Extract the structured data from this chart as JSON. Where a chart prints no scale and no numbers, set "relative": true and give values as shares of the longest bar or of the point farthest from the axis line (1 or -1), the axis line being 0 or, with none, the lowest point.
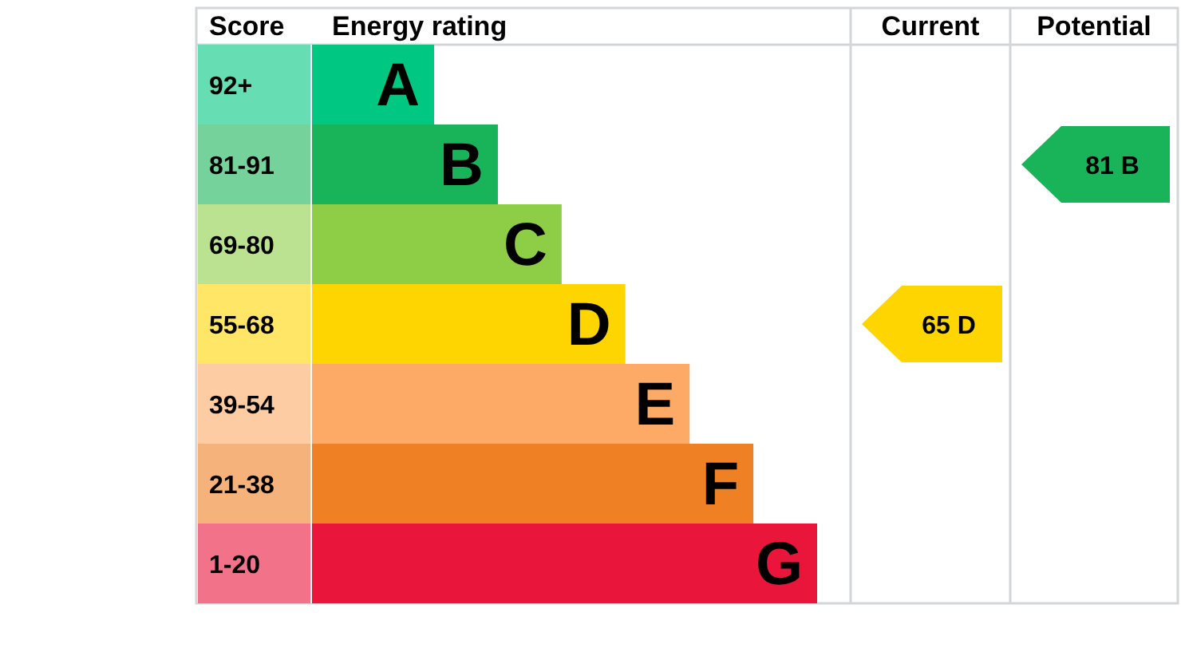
{
  "chart_data": {
    "type": "bar",
    "orientation": "horizontal",
    "relative": true,
    "ylabel": "Score",
    "xlabel": "Energy rating",
    "categories": [
      "92+",
      "81-91",
      "69-80",
      "55-68",
      "39-54",
      "21-38",
      "1-20"
    ],
    "values": [
      0.243,
      0.369,
      0.495,
      0.621,
      0.748,
      0.874,
      1
    ],
    "colors": [
      "#00c781",
      "#19b459",
      "#8dce46",
      "#ffd500",
      "#fcaa65",
      "#ef8023",
      "#e9153b"
    ],
    "annotations": [
      "Current",
      "Potential",
      "A",
      "B",
      "C",
      "D",
      "E",
      "F",
      "G",
      "65 D",
      "81 B"
    ],
    "grid": false
  }
}
